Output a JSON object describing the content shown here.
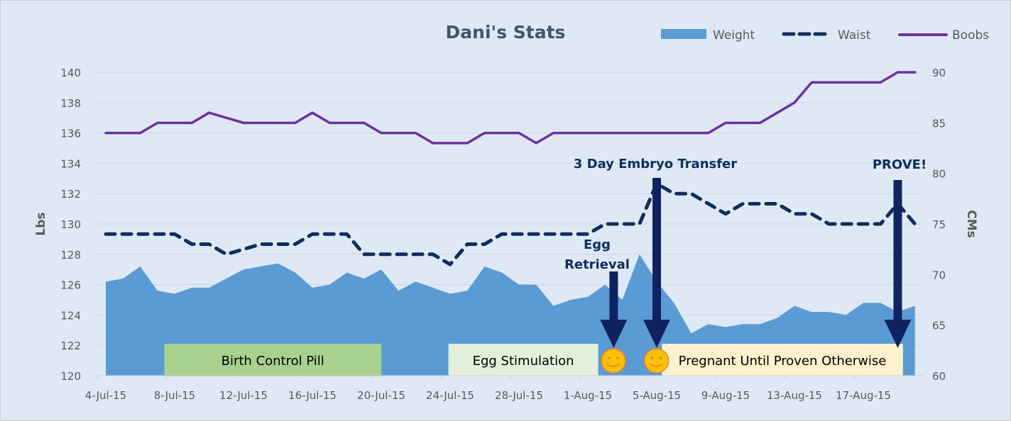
{
  "chart_data": {
    "type": "area",
    "title": "Dani's Stats",
    "ylabel": "Lbs",
    "y2label": "CMs",
    "ylim": [
      120,
      140
    ],
    "y2lim": [
      60,
      90
    ],
    "yticks": [
      "120",
      "122",
      "124",
      "126",
      "128",
      "130",
      "132",
      "134",
      "136",
      "138",
      "140"
    ],
    "y2ticks": [
      "60",
      "65",
      "70",
      "75",
      "80",
      "85",
      "90"
    ],
    "grid": true,
    "legend_position": "top-right",
    "x_start": "4-Jul-15",
    "x_tick_labels": [
      "4-Jul-15",
      "8-Jul-15",
      "12-Jul-15",
      "16-Jul-15",
      "20-Jul-15",
      "24-Jul-15",
      "28-Jul-15",
      "1-Aug-15",
      "5-Aug-15",
      "9-Aug-15",
      "13-Aug-15",
      "17-Aug-15"
    ],
    "x_tick_interval_days": 4,
    "series": [
      {
        "name": "Weight",
        "type": "area",
        "axis": "left",
        "color": "#5b9bd5",
        "values": [
          126.2,
          126.4,
          127.2,
          125.6,
          125.4,
          125.8,
          125.8,
          126.4,
          127.0,
          127.2,
          127.4,
          126.8,
          125.8,
          126.0,
          126.8,
          126.4,
          127.0,
          125.6,
          126.2,
          125.8,
          125.4,
          125.6,
          127.2,
          126.8,
          126.0,
          126.0,
          124.6,
          125.0,
          125.2,
          126.0,
          125.0,
          128.0,
          126.2,
          124.8,
          122.8,
          123.4,
          123.2,
          123.4,
          123.4,
          123.8,
          124.6,
          124.2,
          124.2,
          124.0,
          124.8,
          124.8,
          124.2,
          124.6
        ]
      },
      {
        "name": "Waist",
        "type": "line-dashed",
        "axis": "right",
        "color": "#0f2d5f",
        "values": [
          74,
          74,
          74,
          74,
          74,
          73,
          73,
          72,
          72.5,
          73,
          73,
          73,
          74,
          74,
          74,
          72,
          72,
          72,
          72,
          72,
          71,
          73,
          73,
          74,
          74,
          74,
          74,
          74,
          74,
          75,
          75,
          75,
          79,
          78,
          78,
          77,
          76,
          77,
          77,
          77,
          76,
          76,
          75,
          75,
          75,
          75,
          77,
          75
        ]
      },
      {
        "name": "Boobs",
        "type": "line",
        "axis": "right",
        "color": "#7030a0",
        "values": [
          84,
          84,
          84,
          85,
          85,
          85,
          86,
          85.5,
          85,
          85,
          85,
          85,
          86,
          85,
          85,
          85,
          84,
          84,
          84,
          83,
          83,
          83,
          84,
          84,
          84,
          83,
          84,
          84,
          84,
          84,
          84,
          84,
          84,
          84,
          84,
          84,
          85,
          85,
          85,
          86,
          87,
          89,
          89,
          89,
          89,
          89,
          90,
          90
        ]
      }
    ],
    "annotations": [
      {
        "text_lines": [
          "Egg",
          "Retrieval"
        ],
        "arrow_day_index": 29.5
      },
      {
        "text_lines": [
          "3 Day Embryo Transfer"
        ],
        "arrow_day_index": 32
      },
      {
        "text_lines": [
          "PROVE!"
        ],
        "arrow_day_index": 46
      }
    ],
    "phases": [
      {
        "label": "Birth Control Pill",
        "start_day": 3.4,
        "end_day": 16,
        "color": "#a9d18e"
      },
      {
        "label": "Egg Stimulation",
        "start_day": 19.9,
        "end_day": 28.6,
        "color": "#e2efda"
      },
      {
        "label": "Pregnant Until Proven Otherwise",
        "start_day": 32.3,
        "end_day": 46.3,
        "color": "#fff2cc"
      }
    ],
    "markers": [
      {
        "icon": "smiley-icon",
        "day_index": 29.4
      },
      {
        "icon": "smiley-icon",
        "day_index": 31.9
      }
    ]
  }
}
